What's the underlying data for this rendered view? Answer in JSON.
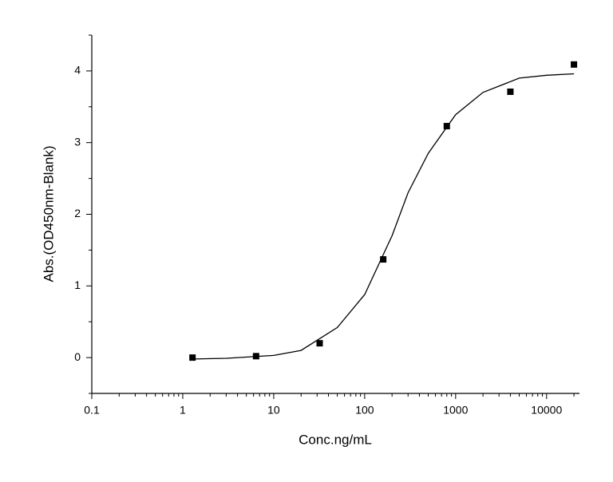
{
  "chart_data": {
    "type": "scatter",
    "x_label": "Conc.ng/mL",
    "y_label": "Abs.(OD450nm-Blank)",
    "xscale": "log",
    "xlim": [
      0.1,
      23000
    ],
    "xticks": [
      0.1,
      1,
      10,
      100,
      1000,
      10000
    ],
    "xminorticks": [
      0.2,
      0.3,
      0.4,
      0.5,
      0.6,
      0.7,
      0.8,
      0.9,
      2,
      3,
      4,
      5,
      6,
      7,
      8,
      9,
      20,
      30,
      40,
      50,
      60,
      70,
      80,
      90,
      200,
      300,
      400,
      500,
      600,
      700,
      800,
      900,
      2000,
      3000,
      4000,
      5000,
      6000,
      7000,
      8000,
      9000,
      20000
    ],
    "ylim": [
      -0.5,
      4.5
    ],
    "yticks": [
      0,
      1,
      2,
      3,
      4
    ],
    "yminorticks": [
      -0.5,
      0.5,
      1.5,
      2.5,
      3.5,
      4.5
    ],
    "series": [
      {
        "mode": "markers",
        "color": "#000000",
        "x": [
          1.28,
          6.4,
          32,
          160,
          800,
          4000,
          20000
        ],
        "values": [
          0.0,
          0.02,
          0.2,
          1.37,
          3.23,
          3.71,
          4.09
        ]
      },
      {
        "mode": "line",
        "color": "#000000",
        "x": [
          1.28,
          3,
          10,
          20,
          50,
          100,
          200,
          300,
          500,
          1000,
          2000,
          5000,
          10000,
          20000
        ],
        "values": [
          -0.02,
          -0.01,
          0.03,
          0.1,
          0.42,
          0.88,
          1.7,
          2.3,
          2.85,
          3.39,
          3.7,
          3.9,
          3.94,
          3.96
        ]
      }
    ]
  }
}
